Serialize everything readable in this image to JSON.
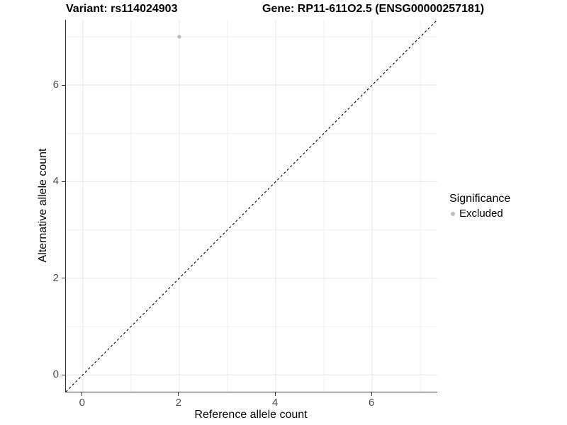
{
  "header": {
    "variant_title": "Variant: rs114024903",
    "gene_title": "Gene: RP11-611O2.5 (ENSG00000257181)"
  },
  "legend": {
    "title": "Significance",
    "items": [
      {
        "label": "Excluded",
        "color": "#bebebe"
      }
    ]
  },
  "chart_data": {
    "type": "scatter",
    "title_left": "Variant: rs114024903",
    "title_right": "Gene: RP11-611O2.5 (ENSG00000257181)",
    "xlabel": "Reference allele count",
    "ylabel": "Alternative allele count",
    "xlim": [
      -0.35,
      7.35
    ],
    "ylim": [
      -0.35,
      7.35
    ],
    "x_ticks": [
      0,
      2,
      4,
      6
    ],
    "y_ticks": [
      0,
      2,
      4,
      6
    ],
    "x_minor_ticks": [
      1,
      3,
      5,
      7
    ],
    "y_minor_ticks": [
      1,
      3,
      5,
      7
    ],
    "grid": true,
    "legend_position": "right",
    "identity_line": {
      "style": "dashed",
      "color": "#000000",
      "equation": "y = x"
    },
    "series": [
      {
        "name": "Excluded",
        "color": "#bebebe",
        "points": [
          {
            "x": 2,
            "y": 7
          }
        ]
      }
    ],
    "colors": {
      "major_grid": "#e8e8e8",
      "minor_grid": "#f2f2f2",
      "axis_line": "#333333",
      "tick_text": "#4d4d4d",
      "point_excluded": "#bebebe"
    }
  }
}
